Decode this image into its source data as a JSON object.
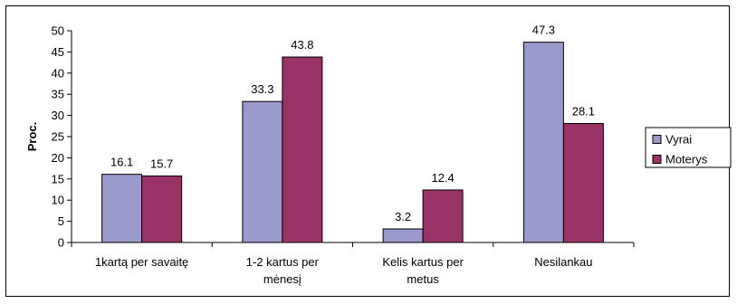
{
  "chart_data": {
    "type": "bar",
    "title": "",
    "xlabel": "",
    "ylabel": "Proc.",
    "ylim": [
      0,
      50
    ],
    "ytick_step": 5,
    "categories": [
      [
        "1kartą per savaitę"
      ],
      [
        "1-2 kartus per",
        "mėnesį"
      ],
      [
        "Kelis kartus per",
        "metus"
      ],
      [
        "Nesilankau"
      ]
    ],
    "series": [
      {
        "name": "Vyrai",
        "color": "#9999cc",
        "values": [
          16.1,
          33.3,
          3.2,
          47.3
        ],
        "labels": [
          "16.1",
          "33.3",
          "3.2",
          "47.3"
        ]
      },
      {
        "name": "Moterys",
        "color": "#993366",
        "values": [
          15.7,
          43.8,
          12.4,
          28.1
        ],
        "labels": [
          "15.7",
          "43.8",
          "12.4",
          "28.1"
        ]
      }
    ],
    "legend": {
      "position": "right"
    },
    "grid": false
  }
}
